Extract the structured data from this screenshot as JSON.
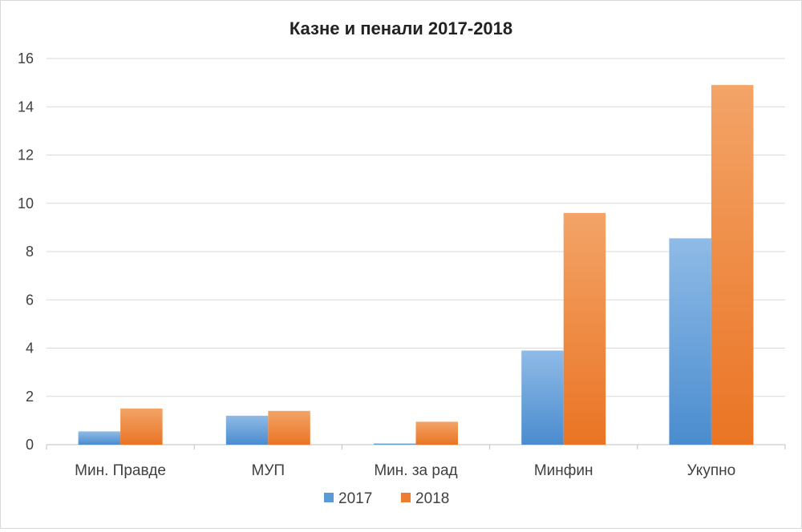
{
  "chart_data": {
    "type": "bar",
    "title": "Казне и пенали 2017-2018",
    "categories": [
      "Мин. Правде",
      "МУП",
      "Мин. за рад",
      "Минфин",
      "Укупно"
    ],
    "series": [
      {
        "name": "2017",
        "values": [
          0.55,
          1.2,
          0.05,
          3.9,
          8.55
        ],
        "color": "#5b9bd5"
      },
      {
        "name": "2018",
        "values": [
          1.5,
          1.4,
          0.95,
          9.6,
          14.9
        ],
        "color": "#ed7d31"
      }
    ],
    "ylim": [
      0,
      16
    ],
    "yticks": [
      0,
      2,
      4,
      6,
      8,
      10,
      12,
      14,
      16
    ],
    "grid": true,
    "legend_position": "bottom"
  }
}
